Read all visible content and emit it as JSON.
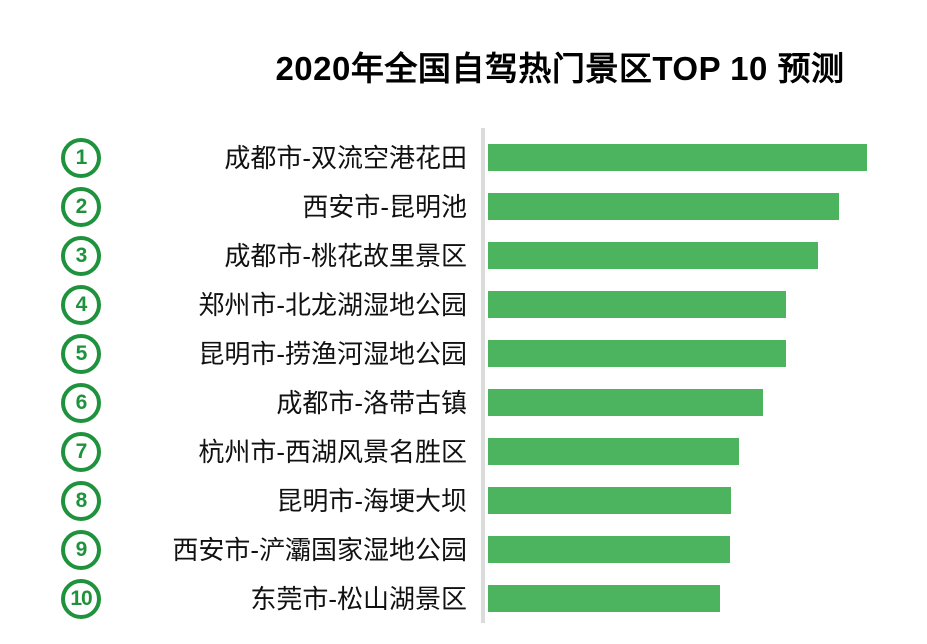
{
  "page": {
    "background": "#FFFFFF"
  },
  "chart_data": {
    "type": "bar",
    "orientation": "horizontal",
    "title": "2020年全国自驾热门景区TOP 10 预测",
    "ranks": [
      "1",
      "2",
      "3",
      "4",
      "5",
      "6",
      "7",
      "8",
      "9",
      "10"
    ],
    "categories": [
      "成都市-双流空港花田",
      "西安市-昆明池",
      "成都市-桃花故里景区",
      "郑州市-北龙湖湿地公园",
      "昆明市-捞渔河湿地公园",
      "成都市-洛带古镇",
      "杭州市-西湖风景名胜区",
      "昆明市-海埂大坝",
      "西安市-浐灞国家湿地公园",
      "东莞市-松山湖景区"
    ],
    "values": [
      100,
      92.6,
      87.1,
      78.6,
      78.6,
      72.6,
      66.2,
      64.1,
      63.9,
      61.2
    ],
    "values_estimated_relative": true,
    "xlim": [
      0,
      100
    ],
    "grid": false,
    "legend": false,
    "value_labels_shown": false,
    "axis_tick_labels_shown": false,
    "bar_color": "#4CB45F",
    "rank_circle_color": "#1E923C",
    "axis_line_color": "#DBDBDB",
    "title_color": "#000000",
    "label_color": "#111111"
  }
}
